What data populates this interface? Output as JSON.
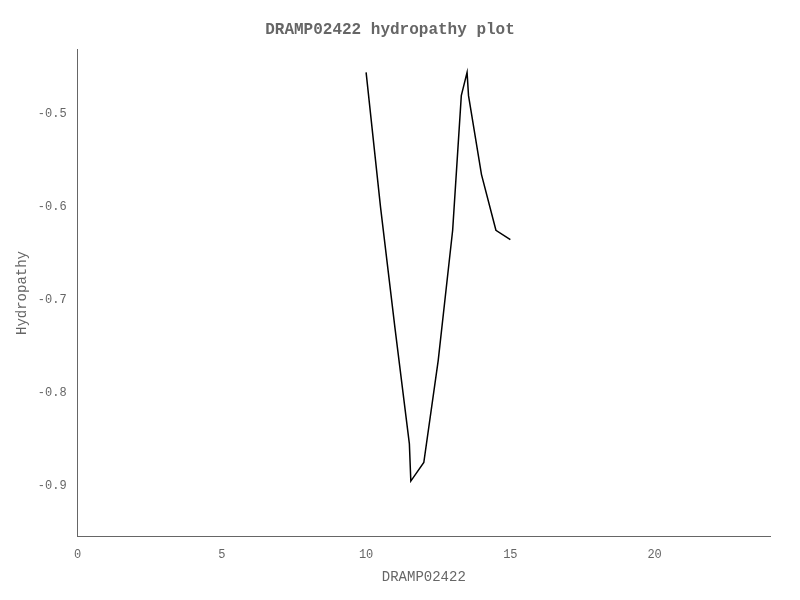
{
  "chart_data": {
    "type": "line",
    "title": "DRAMP02422 hydropathy plot",
    "xlabel": "DRAMP02422",
    "ylabel": "Hydropathy",
    "x": [
      10.0,
      10.5,
      11.0,
      11.5,
      11.55,
      12.0,
      12.5,
      13.0,
      13.3,
      13.5,
      13.55,
      14.0,
      14.5,
      15.0
    ],
    "values": [
      -0.455,
      -0.6,
      -0.73,
      -0.855,
      -0.895,
      -0.875,
      -0.765,
      -0.625,
      -0.48,
      -0.455,
      -0.48,
      -0.565,
      -0.625,
      -0.635
    ],
    "color": "#000000",
    "xlim": [
      0,
      24
    ],
    "ylim": [
      -0.955,
      -0.43
    ],
    "xticks": [
      0,
      5,
      10,
      15,
      20
    ],
    "yticks": [
      -0.9,
      -0.8,
      -0.7,
      -0.6,
      -0.5
    ],
    "grid": false
  }
}
